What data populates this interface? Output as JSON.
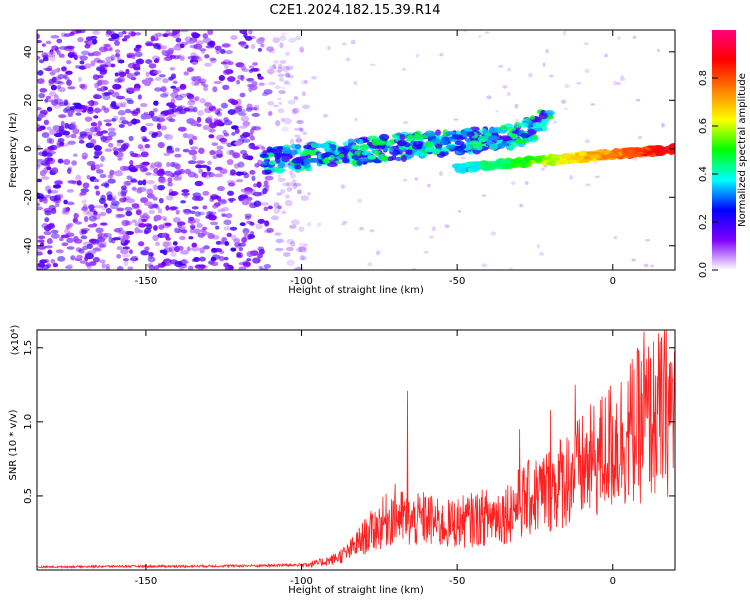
{
  "chart_data": [
    {
      "type": "heatmap",
      "title": "C2E1.2024.182.15.39.R14",
      "xlabel": "Height of straight line (km)",
      "ylabel": "Frequency (Hz)",
      "xlim": [
        -185,
        20
      ],
      "ylim": [
        -50,
        49
      ],
      "xticks": [
        -150,
        -100,
        -50,
        0
      ],
      "yticks": [
        -40,
        -20,
        0,
        20,
        40
      ],
      "colorbar": {
        "label": "Normalized spectral amplitude",
        "range": [
          0.0,
          1.0
        ],
        "ticks": [
          0.0,
          0.2,
          0.4,
          0.6,
          0.8
        ],
        "tick_labels": [
          "0.0",
          "0.2",
          "0.4",
          "0.6",
          "0.8"
        ],
        "colormap": [
          "#ffffff",
          "#7f00ff",
          "#0000ff",
          "#00ffff",
          "#00ff00",
          "#ffff00",
          "#ff7f00",
          "#ff0000",
          "#ff0080"
        ]
      },
      "description_of_signal": {
        "noise_floor_height_range_km": [
          -185,
          -110
        ],
        "upper_branch": {
          "height_km": [
            -112,
            -20
          ],
          "freq_hz": [
            -5,
            14
          ]
        },
        "lower_branch": {
          "height_km": [
            -50,
            20
          ],
          "freq_hz": [
            -8,
            0
          ]
        }
      }
    },
    {
      "type": "line",
      "xlabel": "Height of straight line (km)",
      "ylabel": "SNR (10 * v/v)",
      "scale_label": "(x10⁴)",
      "xlim": [
        -185,
        20
      ],
      "ylim": [
        0,
        16200
      ],
      "xticks": [
        -150,
        -100,
        -50,
        0
      ],
      "yticks": [
        5000,
        10000,
        15000
      ],
      "ytick_labels": [
        "0.5",
        "1.0",
        "1.5"
      ],
      "series": [
        {
          "color": "#ff2020",
          "x": [
            -185,
            -160,
            -140,
            -120,
            -110,
            -100,
            -95,
            -90,
            -85,
            -80,
            -75,
            -70,
            -65,
            -60,
            -55,
            -50,
            -45,
            -40,
            -35,
            -30,
            -25,
            -20,
            -15,
            -10,
            -5,
            0,
            5,
            10,
            15,
            20
          ],
          "y": [
            200,
            250,
            250,
            280,
            300,
            350,
            450,
            700,
            1200,
            2200,
            3000,
            3800,
            3200,
            3500,
            3000,
            3200,
            3400,
            3600,
            3800,
            4500,
            5000,
            5500,
            6200,
            6800,
            7500,
            8500,
            9200,
            10000,
            10500,
            11000
          ]
        }
      ],
      "peaks": [
        {
          "x": -66,
          "y": 12100
        },
        {
          "x": -30,
          "y": 9500
        },
        {
          "x": -20,
          "y": 10800
        },
        {
          "x": -12,
          "y": 12500
        },
        {
          "x": 10,
          "y": 16100
        }
      ]
    }
  ]
}
